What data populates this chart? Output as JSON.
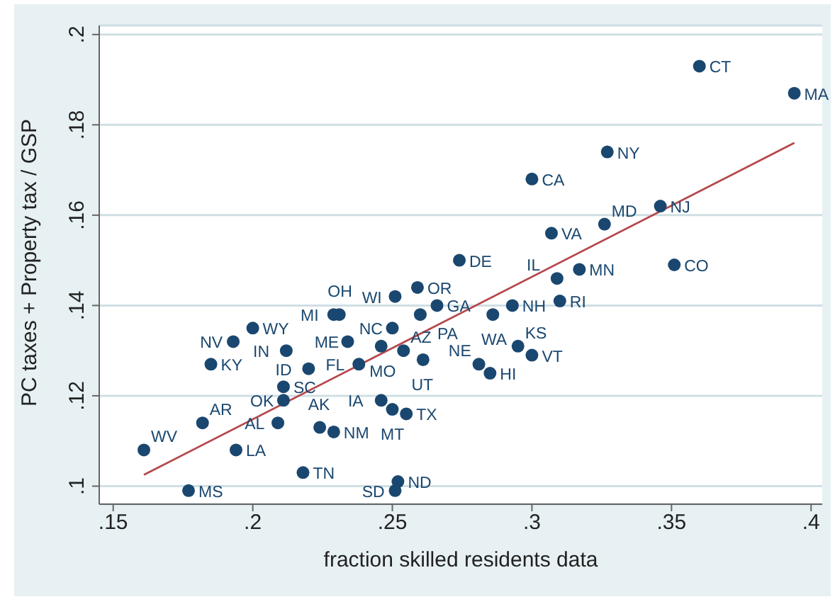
{
  "chart_data": {
    "type": "scatter",
    "xlabel": "fraction skilled residents data",
    "ylabel": "PC taxes + Property tax / GSP",
    "xlim": [
      0.145,
      0.404
    ],
    "ylim": [
      0.096,
      0.202
    ],
    "xticks": [
      {
        "value": 0.15,
        "label": ".15"
      },
      {
        "value": 0.2,
        "label": ".2"
      },
      {
        "value": 0.25,
        "label": ".25"
      },
      {
        "value": 0.3,
        "label": ".3"
      },
      {
        "value": 0.35,
        "label": ".35"
      },
      {
        "value": 0.4,
        "label": ".4"
      }
    ],
    "yticks": [
      {
        "value": 0.1,
        "label": ".1"
      },
      {
        "value": 0.12,
        "label": ".12"
      },
      {
        "value": 0.14,
        "label": ".14"
      },
      {
        "value": 0.16,
        "label": ".16"
      },
      {
        "value": 0.18,
        "label": ".18"
      },
      {
        "value": 0.2,
        "label": ".2"
      }
    ],
    "grid": "y",
    "marker": "circle",
    "series": [
      {
        "type": "scatter",
        "color": "#1a476f",
        "x": [
          0.36,
          0.394,
          0.327,
          0.3,
          0.346,
          0.307,
          0.326,
          0.274,
          0.351,
          0.309,
          0.317,
          0.259,
          0.251,
          0.266,
          0.26,
          0.25,
          0.31,
          0.286,
          0.293,
          0.295,
          0.3,
          0.281,
          0.285,
          0.254,
          0.261,
          0.246,
          0.234,
          0.238,
          0.229,
          0.231,
          0.2,
          0.193,
          0.212,
          0.185,
          0.22,
          0.211,
          0.211,
          0.246,
          0.25,
          0.255,
          0.182,
          0.209,
          0.224,
          0.229,
          0.161,
          0.194,
          0.218,
          0.252,
          0.251,
          0.177
        ],
        "values": [
          0.193,
          0.187,
          0.174,
          0.168,
          0.162,
          0.156,
          0.158,
          0.15,
          0.149,
          0.146,
          0.148,
          0.144,
          0.142,
          0.14,
          0.138,
          0.135,
          0.141,
          0.138,
          0.14,
          0.131,
          0.129,
          0.127,
          0.125,
          0.13,
          0.128,
          0.131,
          0.132,
          0.127,
          0.138,
          0.138,
          0.135,
          0.132,
          0.13,
          0.127,
          0.126,
          0.122,
          0.119,
          0.119,
          0.117,
          0.116,
          0.114,
          0.114,
          0.113,
          0.112,
          0.108,
          0.108,
          0.103,
          0.101,
          0.099,
          0.099
        ],
        "value_labels": [
          "CT",
          "MA",
          "NY",
          "CA",
          "NJ",
          "VA",
          "MD",
          "DE",
          "CO",
          "IL",
          "MN",
          "OR",
          "WI",
          "GA",
          "PA",
          "NC",
          "RI",
          "WA",
          "NH",
          "KS",
          "VT",
          "NE",
          "HI",
          "AZ",
          "UT",
          "MO",
          "ME",
          "FL",
          "MI",
          "OH",
          "WY",
          "NV",
          "IN",
          "KY",
          "ID",
          "SC",
          "OK",
          "IA",
          "MT",
          "TX",
          "AR",
          "AL",
          "AK",
          "NM",
          "WV",
          "LA",
          "TN",
          "ND",
          "SD",
          "MS"
        ]
      },
      {
        "type": "line",
        "marker": "none",
        "color": "#b5474b",
        "x": [
          0.161,
          0.394
        ],
        "values": [
          0.1025,
          0.176
        ]
      }
    ]
  }
}
